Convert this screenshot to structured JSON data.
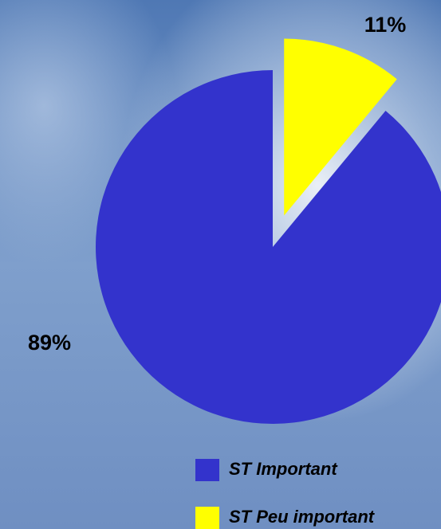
{
  "chart_data": {
    "type": "pie",
    "categories": [
      "ST Important",
      "ST Peu important"
    ],
    "values": [
      89,
      11
    ],
    "value_labels": [
      "89%",
      "11%"
    ],
    "colors": [
      "#3333cc",
      "#ffff00"
    ],
    "exploded": [
      false,
      true
    ],
    "legend": "bottom-right"
  }
}
